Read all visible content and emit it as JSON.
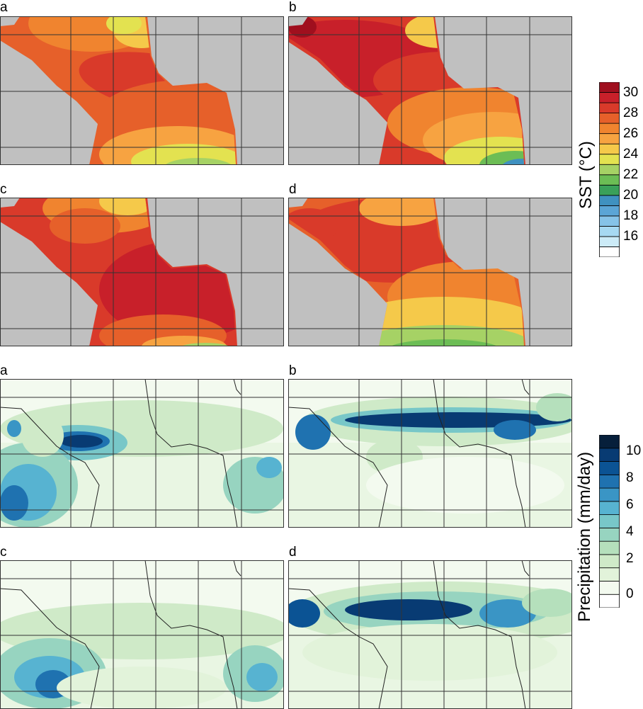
{
  "sst": {
    "panels": [
      {
        "label": "a"
      },
      {
        "label": "b"
      },
      {
        "label": "c"
      },
      {
        "label": "d"
      }
    ],
    "colorbar": {
      "title": "SST (°C)",
      "ticks": [
        "30",
        "28",
        "26",
        "24",
        "22",
        "20",
        "18",
        "16"
      ],
      "colors": [
        "#ffffff",
        "#ccebf7",
        "#a6d9f2",
        "#86c3e8",
        "#5ba5d6",
        "#3f91c0",
        "#3aa05a",
        "#6cbd55",
        "#a6d265",
        "#e3e250",
        "#f5c94a",
        "#f7a341",
        "#f0842f",
        "#e6602a",
        "#d93a2a",
        "#c8202a",
        "#a00f1e"
      ]
    }
  },
  "precip": {
    "panels": [
      {
        "label": "a"
      },
      {
        "label": "b"
      },
      {
        "label": "c"
      },
      {
        "label": "d"
      }
    ],
    "colorbar": {
      "title": "Precipitation (mm/day)",
      "ticks": [
        "10",
        "8",
        "6",
        "4",
        "2",
        "0"
      ],
      "colors": [
        "#ffffff",
        "#f3faef",
        "#e2f3da",
        "#cfeac8",
        "#b5e0bc",
        "#97d4c0",
        "#78c7c8",
        "#57b3d1",
        "#3a95c5",
        "#1f72b0",
        "#0b5394",
        "#083b73",
        "#061f3b"
      ]
    }
  },
  "map_colors": {
    "land": "#c0c0c0",
    "coast": "#222222",
    "grid": "#333333"
  }
}
